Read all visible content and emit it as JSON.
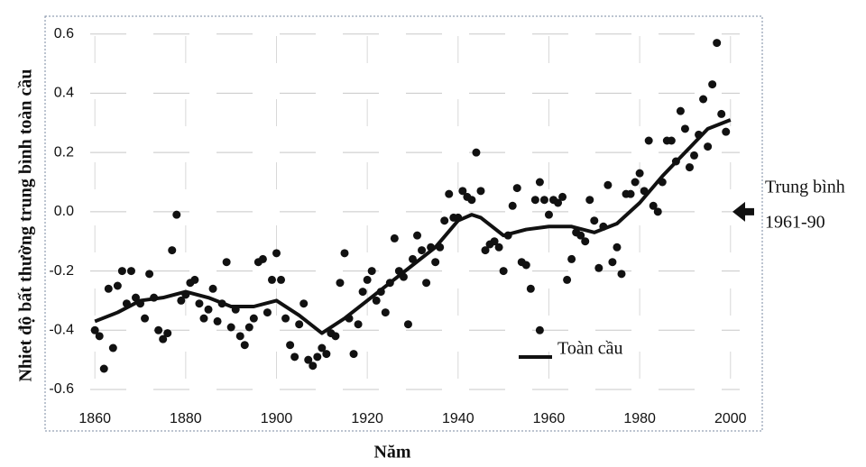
{
  "chart_data": {
    "type": "scatter",
    "x_label": "Năm",
    "y_label": "Nhiet độ bất thường trung bình toàn cầu",
    "xlim": [
      1854,
      2007
    ],
    "xticks": [
      1860,
      1880,
      1900,
      1920,
      1940,
      1960,
      1980,
      2000
    ],
    "ylim": [
      -0.74,
      0.66
    ],
    "yticks": [
      0.6,
      0.4,
      0.2,
      {
        "value": 0,
        "label": "0.0"
      },
      -0.2,
      -0.4,
      -0.6
    ],
    "grid": true,
    "points": {
      "color": "#111111",
      "x": [
        1860,
        1861,
        1862,
        1863,
        1864,
        1865,
        1866,
        1867,
        1868,
        1869,
        1870,
        1871,
        1872,
        1873,
        1874,
        1875,
        1876,
        1877,
        1878,
        1879,
        1880,
        1881,
        1882,
        1883,
        1884,
        1885,
        1886,
        1887,
        1888,
        1889,
        1890,
        1891,
        1892,
        1893,
        1894,
        1895,
        1896,
        1897,
        1898,
        1899,
        1900,
        1901,
        1902,
        1903,
        1904,
        1905,
        1906,
        1907,
        1908,
        1909,
        1910,
        1911,
        1912,
        1913,
        1914,
        1915,
        1916,
        1917,
        1918,
        1919,
        1920,
        1921,
        1922,
        1923,
        1924,
        1925,
        1926,
        1927,
        1928,
        1929,
        1930,
        1931,
        1932,
        1933,
        1934,
        1935,
        1936,
        1937,
        1938,
        1939,
        1940,
        1941,
        1942,
        1943,
        1944,
        1945,
        1946,
        1947,
        1948,
        1949,
        1950,
        1951,
        1952,
        1953,
        1954,
        1955,
        1956,
        1957,
        1958,
        1958,
        1959,
        1960,
        1961,
        1962,
        1963,
        1964,
        1965,
        1966,
        1967,
        1968,
        1969,
        1970,
        1971,
        1972,
        1973,
        1974,
        1975,
        1976,
        1977,
        1978,
        1979,
        1980,
        1981,
        1982,
        1983,
        1984,
        1985,
        1986,
        1987,
        1988,
        1989,
        1990,
        1991,
        1992,
        1993,
        1994,
        1995,
        1996,
        1997,
        1998,
        1999
      ],
      "values": [
        -0.4,
        -0.42,
        -0.53,
        -0.26,
        -0.46,
        -0.25,
        -0.2,
        -0.31,
        -0.2,
        -0.29,
        -0.31,
        -0.36,
        -0.21,
        -0.29,
        -0.4,
        -0.43,
        -0.41,
        -0.13,
        -0.01,
        -0.3,
        -0.28,
        -0.24,
        -0.23,
        -0.31,
        -0.36,
        -0.33,
        -0.26,
        -0.37,
        -0.31,
        -0.17,
        -0.39,
        -0.33,
        -0.42,
        -0.45,
        -0.39,
        -0.36,
        -0.17,
        -0.16,
        -0.34,
        -0.23,
        -0.14,
        -0.23,
        -0.36,
        -0.45,
        -0.49,
        -0.38,
        -0.31,
        -0.5,
        -0.52,
        -0.49,
        -0.46,
        -0.48,
        -0.41,
        -0.42,
        -0.24,
        -0.14,
        -0.36,
        -0.48,
        -0.38,
        -0.27,
        -0.23,
        -0.2,
        -0.3,
        -0.27,
        -0.34,
        -0.24,
        -0.09,
        -0.2,
        -0.22,
        -0.38,
        -0.16,
        -0.08,
        -0.13,
        -0.24,
        -0.12,
        -0.17,
        -0.12,
        -0.03,
        0.06,
        -0.02,
        -0.02,
        0.07,
        0.05,
        0.04,
        0.2,
        0.07,
        -0.13,
        -0.11,
        -0.1,
        -0.12,
        -0.2,
        -0.08,
        0.02,
        0.08,
        -0.17,
        -0.18,
        -0.26,
        0.04,
        0.1,
        -0.4,
        0.04,
        -0.01,
        0.04,
        0.03,
        0.05,
        -0.23,
        -0.16,
        -0.07,
        -0.08,
        -0.1,
        0.04,
        -0.03,
        -0.19,
        -0.05,
        0.09,
        -0.17,
        -0.12,
        -0.21,
        0.06,
        0.06,
        0.1,
        0.13,
        0.07,
        0.24,
        0.02,
        0.0,
        0.1,
        0.24,
        0.24,
        0.17,
        0.34,
        0.28,
        0.15,
        0.19,
        0.26,
        0.38,
        0.22,
        0.43,
        0.57,
        0.33,
        0.27
      ]
    },
    "series": [
      {
        "name": "Toàn cầu",
        "color": "#111111",
        "type": "line",
        "x": [
          1860,
          1865,
          1870,
          1875,
          1880,
          1885,
          1890,
          1895,
          1900,
          1905,
          1910,
          1915,
          1920,
          1925,
          1930,
          1935,
          1940,
          1943,
          1945,
          1950,
          1955,
          1960,
          1965,
          1970,
          1975,
          1980,
          1985,
          1990,
          1995,
          2000
        ],
        "values": [
          -0.37,
          -0.34,
          -0.3,
          -0.29,
          -0.27,
          -0.29,
          -0.32,
          -0.32,
          -0.3,
          -0.35,
          -0.41,
          -0.36,
          -0.3,
          -0.24,
          -0.18,
          -0.12,
          -0.03,
          -0.01,
          -0.02,
          -0.08,
          -0.06,
          -0.05,
          -0.05,
          -0.07,
          -0.04,
          0.03,
          0.12,
          0.2,
          0.28,
          0.31
        ]
      }
    ],
    "annotation": {
      "lines": [
        "Trung bình",
        "1961-90"
      ],
      "y": 0
    }
  }
}
